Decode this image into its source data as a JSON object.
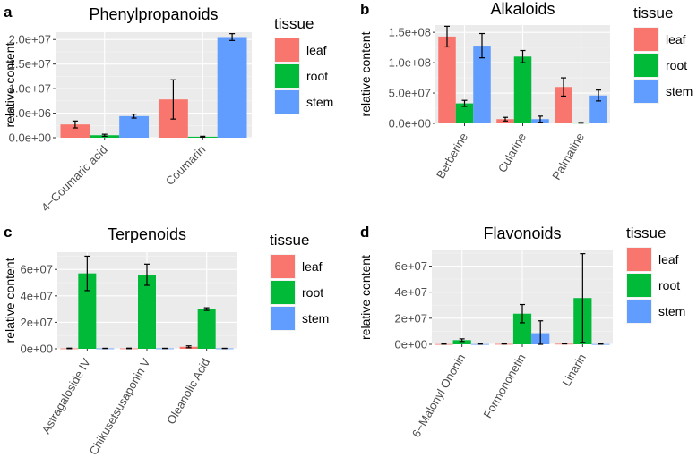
{
  "legend": {
    "title": "tissue",
    "entries": [
      {
        "label": "leaf",
        "color": "#F8766D"
      },
      {
        "label": "root",
        "color": "#00BA38"
      },
      {
        "label": "stem",
        "color": "#619CFF"
      }
    ]
  },
  "chart_data": [
    {
      "panel_letter": "a",
      "type": "bar",
      "title": "Phenylpropanoids",
      "ylabel": "relative content",
      "xlabel": "",
      "ylim": [
        0,
        21500000
      ],
      "yticks": [
        0,
        5000000,
        10000000,
        15000000,
        20000000
      ],
      "ytick_labels": [
        "0.0e+00",
        "5.0e+06",
        "1.0e+07",
        "1.5e+07",
        "2.0e+07"
      ],
      "categories": [
        "4−Coumaric acid",
        "Coumarin"
      ],
      "series": [
        {
          "name": "leaf",
          "values": [
            2700000,
            7800000
          ],
          "errors": [
            700000,
            4000000
          ]
        },
        {
          "name": "root",
          "values": [
            500000,
            200000
          ],
          "errors": [
            200000,
            100000
          ]
        },
        {
          "name": "stem",
          "values": [
            4400000,
            20500000
          ],
          "errors": [
            400000,
            700000
          ]
        }
      ]
    },
    {
      "panel_letter": "b",
      "type": "bar",
      "title": "Alkaloids",
      "ylabel": "relative content",
      "xlabel": "",
      "ylim": [
        0,
        162000000
      ],
      "yticks": [
        0,
        50000000,
        100000000,
        150000000
      ],
      "ytick_labels": [
        "0.0e+00",
        "5.0e+07",
        "1.0e+08",
        "1.5e+08"
      ],
      "categories": [
        "Berberine",
        "Cularine",
        "Palmatine"
      ],
      "series": [
        {
          "name": "leaf",
          "values": [
            143000000,
            7000000,
            60000000
          ],
          "errors": [
            17000000,
            3000000,
            15000000
          ]
        },
        {
          "name": "root",
          "values": [
            33000000,
            110000000,
            1000000
          ],
          "errors": [
            5000000,
            10000000,
            500000
          ]
        },
        {
          "name": "stem",
          "values": [
            128000000,
            7000000,
            46000000
          ],
          "errors": [
            20000000,
            5000000,
            9000000
          ]
        }
      ]
    },
    {
      "panel_letter": "c",
      "type": "bar",
      "title": "Terpenoids",
      "ylabel": "relative content",
      "xlabel": "",
      "ylim": [
        0,
        73000000
      ],
      "yticks": [
        0,
        20000000,
        40000000,
        60000000
      ],
      "ytick_labels": [
        "0e+00",
        "2e+07",
        "4e+07",
        "6e+07"
      ],
      "categories": [
        "Astragaloside IV",
        "Chikusetsusaponin V",
        "Oleanolic Acid"
      ],
      "series": [
        {
          "name": "leaf",
          "values": [
            300000,
            300000,
            1500000
          ],
          "errors": [
            200000,
            200000,
            700000
          ]
        },
        {
          "name": "root",
          "values": [
            57000000,
            56000000,
            30000000
          ],
          "errors": [
            13000000,
            8000000,
            1000000
          ]
        },
        {
          "name": "stem",
          "values": [
            300000,
            300000,
            300000
          ],
          "errors": [
            100000,
            100000,
            100000
          ]
        }
      ]
    },
    {
      "panel_letter": "d",
      "type": "bar",
      "title": "Flavonoids",
      "ylabel": "relative content",
      "xlabel": "",
      "ylim": [
        0,
        72000000
      ],
      "yticks": [
        0,
        20000000,
        40000000,
        60000000
      ],
      "ytick_labels": [
        "0e+00",
        "2e+07",
        "4e+07",
        "6e+07"
      ],
      "categories": [
        "6−Malonyl Ononin",
        "Formononetin",
        "Linarin"
      ],
      "series": [
        {
          "name": "leaf",
          "values": [
            200000,
            300000,
            400000
          ],
          "errors": [
            100000,
            100000,
            100000
          ]
        },
        {
          "name": "root",
          "values": [
            3200000,
            23500000,
            35500000
          ],
          "errors": [
            1000000,
            7000000,
            34000000
          ]
        },
        {
          "name": "stem",
          "values": [
            200000,
            8500000,
            200000
          ],
          "errors": [
            100000,
            9500000,
            100000
          ]
        }
      ]
    }
  ]
}
